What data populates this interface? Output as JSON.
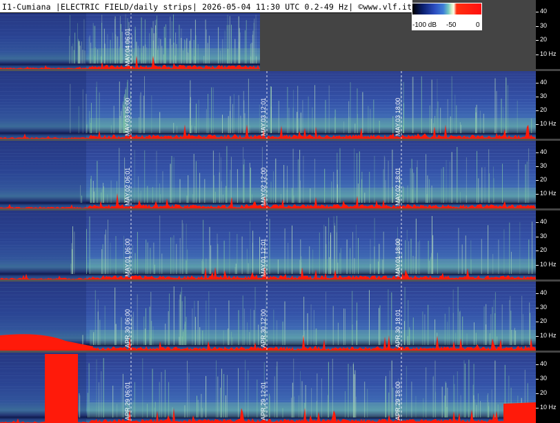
{
  "header": {
    "title": "I1-Cumiana |ELECTRIC FIELD/daily strips| 2026-05-04 11:30 UTC 0.2-49 Hz| ©www.vlf.it"
  },
  "colorbar": {
    "labels": [
      "-100 dB",
      "-50",
      "0"
    ],
    "colors": [
      "#000000",
      "#2b4cbe",
      "#72c7c0",
      "#fffbe8",
      "#ff2010"
    ]
  },
  "axis_ticks": [
    "40",
    "30",
    "20",
    "10 Hz"
  ],
  "chart_data": {
    "type": "heatmap",
    "title": "I1-Cumiana |ELECTRIC FIELD/daily strips| 2026-05-04 11:30 UTC 0.2-49 Hz| ©www.vlf.it",
    "y_range_hz": [
      0.2,
      49
    ],
    "y_ticks": [
      "10 Hz",
      "20",
      "30",
      "40"
    ],
    "colorbar_db_range": [
      -100,
      0
    ],
    "strips": [
      {
        "day_label": "MAY.04",
        "time_labels": [
          "06:01"
        ]
      },
      {
        "day_label": "MAY.03",
        "time_labels": [
          "06:00",
          "12:01",
          "18:00"
        ]
      },
      {
        "day_label": "MAY.02",
        "time_labels": [
          "06:01",
          "12:00",
          "18:01"
        ]
      },
      {
        "day_label": "MAY.01",
        "time_labels": [
          "06:00",
          "12:01",
          "18:00"
        ]
      },
      {
        "day_label": "APR.30",
        "time_labels": [
          "06:00",
          "12:00",
          "18:01"
        ]
      },
      {
        "day_label": "APR.29",
        "time_labels": [
          "06:01",
          "12:01",
          "18:00"
        ]
      }
    ]
  }
}
